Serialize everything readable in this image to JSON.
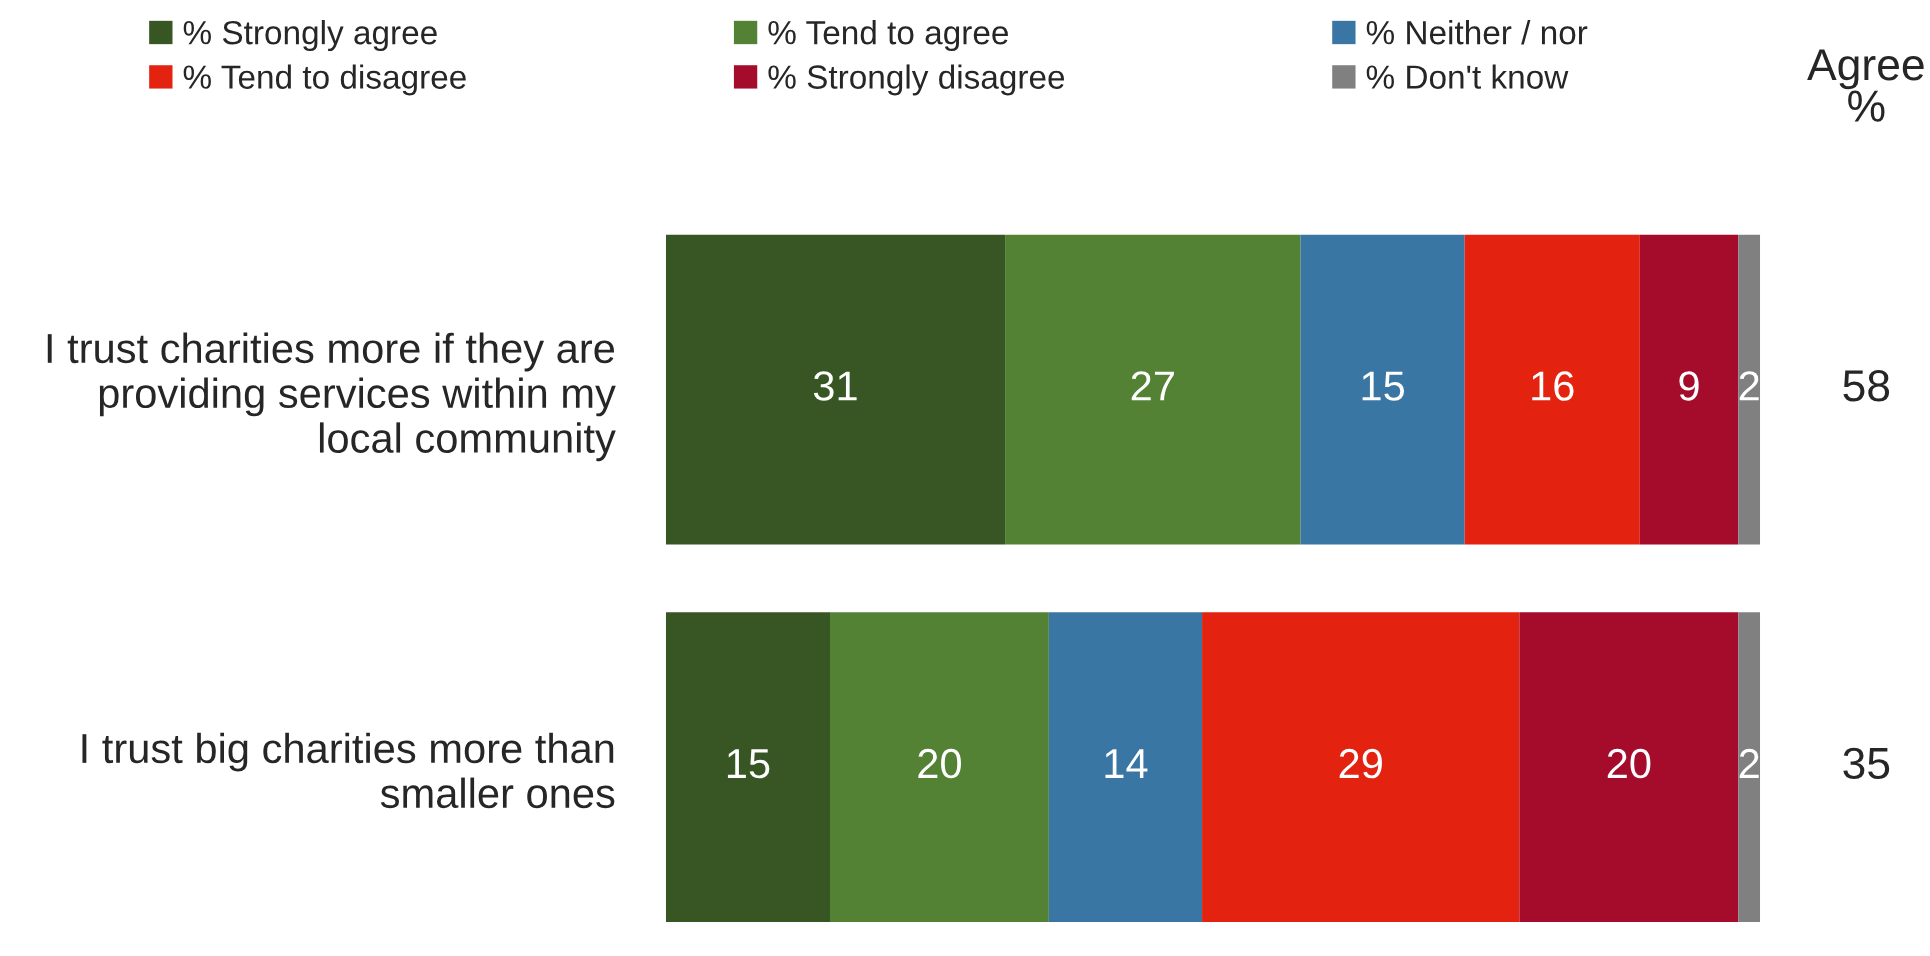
{
  "chart_data": {
    "type": "bar",
    "orientation": "horizontal",
    "stacked": true,
    "categories": [
      "I trust charities more if they are providing services within my local community",
      "I trust big charities more than smaller ones"
    ],
    "series": [
      {
        "name": "% Strongly agree",
        "color": "#375623",
        "values": [
          31,
          15
        ]
      },
      {
        "name": "% Tend to agree",
        "color": "#548235",
        "values": [
          27,
          20
        ]
      },
      {
        "name": "% Neither / nor",
        "color": "#3a76a4",
        "values": [
          15,
          14
        ]
      },
      {
        "name": "% Tend to disagree",
        "color": "#e3220f",
        "values": [
          16,
          29
        ]
      },
      {
        "name": "% Strongly disagree",
        "color": "#a50b2b",
        "values": [
          9,
          20
        ]
      },
      {
        "name": "% Don't know",
        "color": "#808080",
        "values": [
          2,
          2
        ]
      }
    ],
    "xlim": [
      0,
      100
    ],
    "tick_labels": "y",
    "data_labels": true,
    "legend": "top",
    "grid": false,
    "annotations": [
      "Agree\n%",
      "58",
      "35"
    ]
  }
}
